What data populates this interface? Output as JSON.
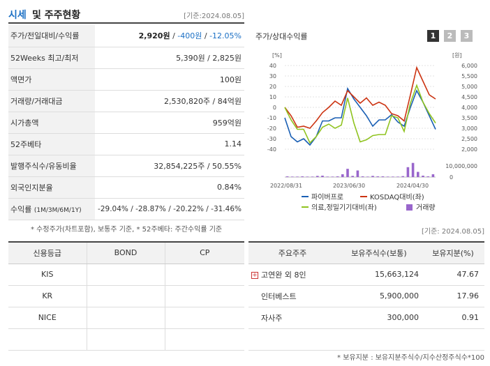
{
  "header": {
    "title_a": "시세",
    "title_b": "및 주주현황",
    "date": "[기준:2024.08.05]"
  },
  "info_rows": [
    {
      "label": "주가/전일대비/수익률",
      "v1": "2,920원",
      "sep1": " / ",
      "v2": "-400원",
      "sep2": " / ",
      "v3": "-12.05%"
    },
    {
      "label": "52Weeks 최고/최저",
      "value": "5,390원 / 2,825원"
    },
    {
      "label": "액면가",
      "value": "100원"
    },
    {
      "label": "거래량/거래대금",
      "value": "2,530,820주 / 84억원"
    },
    {
      "label": "시가총액",
      "value": "959억원"
    },
    {
      "label": "52주베타",
      "value": "1.14"
    },
    {
      "label": "발행주식수/유동비율",
      "value": "32,854,225주 / 50.55%"
    },
    {
      "label": "외국인지분율",
      "value": "0.84%"
    },
    {
      "label": "수익률",
      "label_sub": "(1M/3M/6M/1Y)",
      "value": "-29.04% / -28.87% / -20.22% / -31.46%"
    }
  ],
  "footnote": "* 수정주가(차트포함), 보통주 기준, * 52주베타: 주간수익률 기준",
  "chart_panel": {
    "title": "주가/상대수익률",
    "tabs": [
      "1",
      "2",
      "3"
    ]
  },
  "chart_data": {
    "type": "line",
    "y_left_unit": "[%]",
    "y_right_unit": "[원]",
    "y_left_ticks": [
      "40",
      "30",
      "20",
      "10",
      "0",
      "-10",
      "-20",
      "-30",
      "-40"
    ],
    "y_right_ticks": [
      "6,000",
      "5,500",
      "5,000",
      "4,500",
      "4,000",
      "3,500",
      "3,000",
      "2,500",
      "2,000"
    ],
    "volume_ticks": [
      "10,000,000",
      "0"
    ],
    "x_ticks": [
      "2022/08/31",
      "2023/06/30",
      "2024/04/30"
    ],
    "ylim_left": [
      -40,
      40
    ],
    "ylim_right": [
      2000,
      6000
    ],
    "series": [
      {
        "name": "파이버프로",
        "color": "#1a5fb4",
        "values": [
          -10,
          -28,
          -33,
          -30,
          -36,
          -28,
          -13,
          -13,
          -10,
          -10,
          18,
          8,
          0,
          -8,
          -18,
          -12,
          -12,
          -7,
          -14,
          -18,
          0,
          16,
          5,
          -8,
          -21
        ]
      },
      {
        "name": "KOSDAQ대비(좌)",
        "color": "#cc3311",
        "values": [
          0,
          -8,
          -19,
          -18,
          -20,
          -13,
          -5,
          0,
          6,
          2,
          16,
          10,
          4,
          9,
          2,
          5,
          2,
          -6,
          -8,
          -13,
          12,
          38,
          25,
          12,
          8
        ]
      },
      {
        "name": "의료,정밀기기대비(좌)",
        "color": "#8fc31f",
        "values": [
          0,
          -12,
          -21,
          -21,
          -34,
          -28,
          -19,
          -16,
          -20,
          -17,
          9,
          -15,
          -33,
          -31,
          -27,
          -26,
          -26,
          -8,
          -10,
          -23,
          4,
          21,
          5,
          -6,
          -15
        ]
      }
    ],
    "volume": {
      "name": "거래량",
      "color": "#9966cc",
      "values": [
        0.3,
        0.2,
        0.2,
        0.3,
        0.2,
        0.2,
        0.5,
        0.6,
        0.2,
        0.2,
        0.3,
        1.2,
        3.5,
        0.5,
        2.8,
        0.3,
        0.2,
        0.5,
        0.3,
        0.3,
        0.2,
        0.2,
        0.2,
        0.4,
        4.2,
        6.0,
        2.2,
        0.6,
        0.3,
        1.2
      ]
    },
    "legend": [
      "파이버프로",
      "KOSDAQ대비(좌)",
      "의료,정밀기기대비(좌)",
      "거래량"
    ]
  },
  "date2": "[기준: 2024.08.05]",
  "credit": {
    "headers": [
      "신용등급",
      "BOND",
      "CP"
    ],
    "rows": [
      [
        "KIS",
        "",
        ""
      ],
      [
        "KR",
        "",
        ""
      ],
      [
        "NICE",
        "",
        ""
      ],
      [
        "",
        "",
        ""
      ]
    ]
  },
  "holders": {
    "headers": [
      "주요주주",
      "보유주식수(보통)",
      "보유지분(%)"
    ],
    "rows": [
      {
        "name": "고연완 외 8인",
        "shares": "15,663,124",
        "pct": "47.67",
        "expand": "+"
      },
      {
        "name": "인터베스트",
        "shares": "5,900,000",
        "pct": "17.96"
      },
      {
        "name": "자사주",
        "shares": "300,000",
        "pct": "0.91"
      }
    ]
  },
  "holder_note": "* 보유지분 : 보유지분주식수/지수산정주식수*100"
}
